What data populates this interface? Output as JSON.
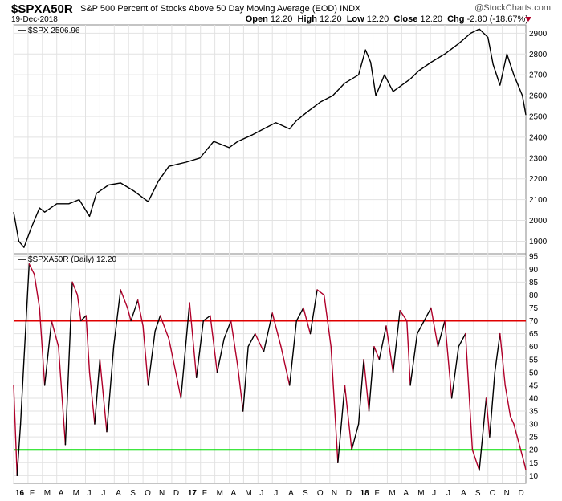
{
  "header": {
    "symbol": "$SPXA50R",
    "description": "S&P 500 Percent of Stocks Above 50 Day Moving Average (EOD)",
    "exchange": "INDX",
    "logo": "@StockCharts.com",
    "date": "19-Dec-2018",
    "open_label": "Open",
    "open": "12.20",
    "high_label": "High",
    "high": "12.20",
    "low_label": "Low",
    "low": "12.20",
    "close_label": "Close",
    "close": "12.20",
    "chg_label": "Chg",
    "chg": "-2.80 (-18.67%)",
    "chg_color": "#b0002a"
  },
  "chart_data": [
    {
      "type": "line",
      "legend": "$SPX 2506.96",
      "ylim": [
        1840,
        2940
      ],
      "yticks": [
        1900,
        2000,
        2100,
        2200,
        2300,
        2400,
        2500,
        2600,
        2700,
        2800,
        2900
      ],
      "line_color": "#000000",
      "grid": true,
      "legend_position": "top-left",
      "x": [
        2016.0,
        2016.03,
        2016.06,
        2016.1,
        2016.15,
        2016.18,
        2016.25,
        2016.32,
        2016.38,
        2016.44,
        2016.48,
        2016.55,
        2016.62,
        2016.7,
        2016.78,
        2016.84,
        2016.9,
        2016.95,
        2017.0,
        2017.08,
        2017.16,
        2017.25,
        2017.3,
        2017.38,
        2017.45,
        2017.52,
        2017.6,
        2017.64,
        2017.7,
        2017.78,
        2017.85,
        2017.92,
        2018.0,
        2018.04,
        2018.07,
        2018.1,
        2018.15,
        2018.2,
        2018.25,
        2018.3,
        2018.35,
        2018.42,
        2018.5,
        2018.58,
        2018.65,
        2018.7,
        2018.75,
        2018.78,
        2018.82,
        2018.86,
        2018.9,
        2018.95,
        2018.97
      ],
      "y": [
        2040,
        1900,
        1870,
        1960,
        2060,
        2040,
        2080,
        2080,
        2100,
        2020,
        2130,
        2170,
        2180,
        2140,
        2090,
        2190,
        2260,
        2270,
        2280,
        2300,
        2380,
        2350,
        2380,
        2410,
        2440,
        2470,
        2440,
        2480,
        2520,
        2570,
        2600,
        2660,
        2700,
        2820,
        2760,
        2600,
        2700,
        2620,
        2650,
        2680,
        2720,
        2760,
        2800,
        2850,
        2900,
        2920,
        2880,
        2750,
        2650,
        2800,
        2700,
        2600,
        2507
      ]
    },
    {
      "type": "line",
      "legend": "$SPXA50R (Daily) 12.20",
      "ylim": [
        7,
        96
      ],
      "yticks": [
        10,
        15,
        20,
        25,
        30,
        35,
        40,
        45,
        50,
        55,
        60,
        65,
        70,
        75,
        80,
        85,
        90,
        95
      ],
      "line_color": "#b0002a",
      "rising_color": "#000000",
      "upper_line": 70,
      "upper_color": "#e00000",
      "lower_line": 20,
      "lower_color": "#00dd00",
      "grid": true,
      "legend_position": "top-left",
      "x": [
        2016.0,
        2016.02,
        2016.04,
        2016.06,
        2016.09,
        2016.12,
        2016.15,
        2016.18,
        2016.22,
        2016.26,
        2016.3,
        2016.34,
        2016.37,
        2016.39,
        2016.42,
        2016.44,
        2016.47,
        2016.5,
        2016.54,
        2016.58,
        2016.62,
        2016.66,
        2016.68,
        2016.72,
        2016.75,
        2016.78,
        2016.82,
        2016.85,
        2016.9,
        2016.94,
        2016.97,
        2017.02,
        2017.06,
        2017.1,
        2017.14,
        2017.18,
        2017.22,
        2017.26,
        2017.3,
        2017.33,
        2017.36,
        2017.4,
        2017.45,
        2017.5,
        2017.55,
        2017.6,
        2017.64,
        2017.68,
        2017.72,
        2017.76,
        2017.8,
        2017.84,
        2017.88,
        2017.92,
        2017.96,
        2018.0,
        2018.03,
        2018.06,
        2018.09,
        2018.12,
        2018.16,
        2018.2,
        2018.24,
        2018.28,
        2018.3,
        2018.34,
        2018.38,
        2018.42,
        2018.46,
        2018.5,
        2018.54,
        2018.58,
        2018.62,
        2018.66,
        2018.7,
        2018.74,
        2018.76,
        2018.79,
        2018.82,
        2018.85,
        2018.88,
        2018.9,
        2018.92,
        2018.94,
        2018.96,
        2018.97
      ],
      "y": [
        45,
        10,
        30,
        55,
        92,
        88,
        75,
        45,
        70,
        60,
        22,
        85,
        80,
        70,
        72,
        50,
        30,
        55,
        27,
        60,
        82,
        75,
        70,
        78,
        68,
        45,
        66,
        72,
        63,
        50,
        40,
        77,
        48,
        70,
        72,
        50,
        63,
        70,
        52,
        35,
        60,
        65,
        58,
        73,
        60,
        45,
        70,
        75,
        65,
        82,
        80,
        60,
        15,
        45,
        20,
        30,
        55,
        35,
        60,
        55,
        68,
        50,
        74,
        70,
        45,
        65,
        70,
        75,
        60,
        70,
        40,
        60,
        65,
        20,
        12,
        40,
        25,
        50,
        65,
        45,
        33,
        30,
        25,
        20,
        15,
        12.2
      ]
    }
  ],
  "x_axis": {
    "ticks": [
      "16",
      "F",
      "M",
      "A",
      "M",
      "J",
      "J",
      "A",
      "S",
      "O",
      "N",
      "D",
      "17",
      "F",
      "M",
      "A",
      "M",
      "J",
      "J",
      "A",
      "S",
      "O",
      "N",
      "D",
      "18",
      "F",
      "M",
      "A",
      "M",
      "J",
      "J",
      "A",
      "S",
      "O",
      "N",
      "D"
    ],
    "bold_ticks": [
      "16",
      "17",
      "18"
    ]
  }
}
